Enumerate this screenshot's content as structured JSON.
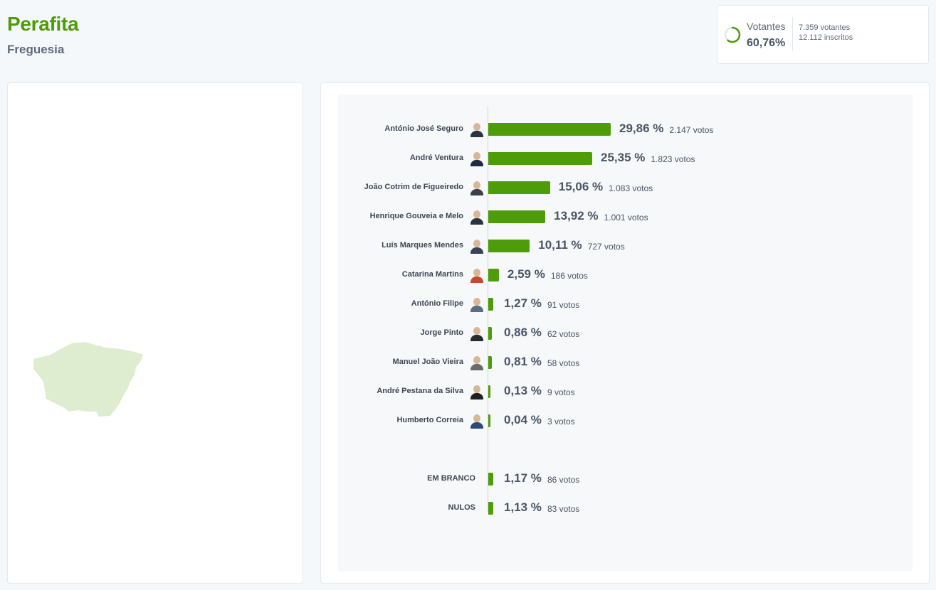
{
  "header": {
    "title": "Perafita",
    "subtitle": "Freguesia"
  },
  "turnout": {
    "label": "Votantes",
    "percent_text": "60,76%",
    "percent_value": 60.76,
    "voters_text": "7.359 votantes",
    "registered_text": "12.112 inscritos"
  },
  "colors": {
    "accent": "#4f9c0a",
    "map_fill": "#deecd0",
    "text_dark": "#4a5566"
  },
  "chart_data": {
    "type": "bar",
    "orientation": "horizontal",
    "unit": "%",
    "categories": [
      "António José Seguro",
      "André Ventura",
      "João Cotrim de Figueiredo",
      "Henrique Gouveia e Melo",
      "Luís Marques Mendes",
      "Catarina Martins",
      "António Filipe",
      "Jorge Pinto",
      "Manuel João Vieira",
      "André Pestana da Silva",
      "Humberto Correia",
      "EM BRANCO",
      "NULOS"
    ],
    "values": [
      29.86,
      25.35,
      15.06,
      13.92,
      10.11,
      2.59,
      1.27,
      0.86,
      0.81,
      0.13,
      0.04,
      1.17,
      1.13
    ],
    "value_labels": [
      "29,86 %",
      "25,35 %",
      "15,06 %",
      "13,92 %",
      "10,11 %",
      "2,59 %",
      "1,27 %",
      "0,86 %",
      "0,81 %",
      "0,13 %",
      "0,04 %",
      "1,17 %",
      "1,13 %"
    ],
    "votes": [
      2147,
      1823,
      1083,
      1001,
      727,
      186,
      91,
      62,
      58,
      9,
      3,
      86,
      83
    ],
    "votes_labels": [
      "2.147 votos",
      "1.823 votos",
      "1.083 votos",
      "1.001 votos",
      "727 votos",
      "186 votos",
      "91 votos",
      "62 votos",
      "58 votos",
      "9 votos",
      "3 votos",
      "86 votos",
      "83 votos"
    ],
    "has_photo": [
      true,
      true,
      true,
      true,
      true,
      true,
      true,
      true,
      true,
      true,
      true,
      false,
      false
    ],
    "photo_colors": [
      "#2b3442",
      "#1f2a44",
      "#3a3f48",
      "#2c3340",
      "#3b4350",
      "#c9472f",
      "#5b6c85",
      "#2a2a2a",
      "#6b6b6b",
      "#1f1f1f",
      "#2f4a7a",
      "",
      ""
    ],
    "title": "",
    "xlabel": "",
    "ylabel": "",
    "grid": false,
    "legend": "none"
  }
}
